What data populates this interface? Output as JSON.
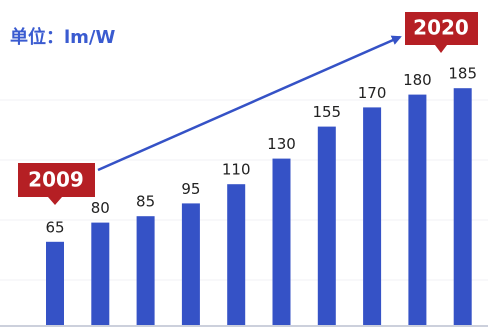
{
  "chart_data": {
    "type": "bar",
    "title": "单位：lm/W",
    "values": [
      65,
      80,
      85,
      95,
      110,
      130,
      155,
      170,
      180,
      185
    ],
    "color": "#3552c6",
    "annotations": [
      "2009",
      "2020"
    ]
  }
}
